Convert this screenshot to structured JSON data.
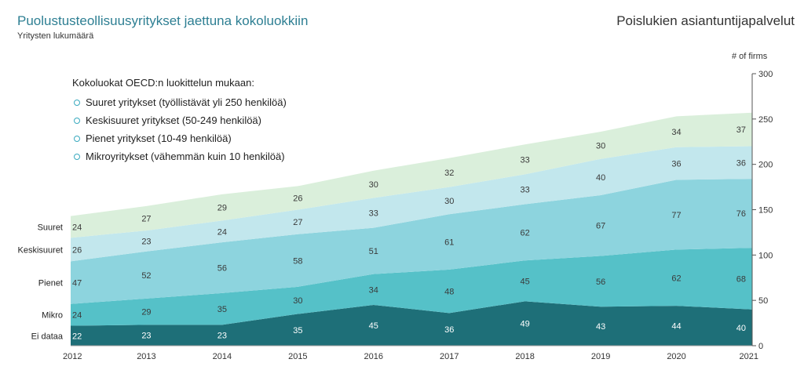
{
  "header": {
    "title": "Puolustusteollisuusyritykset jaettuna kokoluokkiin",
    "subtitle": "Yritysten lukumäärä",
    "right_title": "Poislukien asiantuntijapalvelut",
    "unit_label": "# of firms"
  },
  "legend": {
    "title": "Kokoluokat OECD:n luokittelun mukaan:",
    "items": [
      "Suuret yritykset (työllistävät yli 250 henkilöä)",
      "Keskisuuret yritykset (50-249 henkilöä)",
      "Pienet yritykset (10-49 henkilöä)",
      "Mikroyritykset (vähemmän kuin 10 henkilöä)"
    ]
  },
  "chart_data": {
    "type": "area",
    "stacked": true,
    "title": "Puolustusteollisuusyritykset jaettuna kokoluokkiin",
    "ylabel": "# of firms",
    "x": [
      "2012",
      "2013",
      "2014",
      "2015",
      "2016",
      "2017",
      "2018",
      "2019",
      "2020",
      "2021"
    ],
    "ylim": [
      0,
      300
    ],
    "yticks": [
      0,
      50,
      100,
      150,
      200,
      250,
      300
    ],
    "y_axis_side": "right",
    "series": [
      {
        "name": "Ei dataa",
        "values": [
          22,
          23,
          23,
          35,
          45,
          36,
          49,
          43,
          44,
          40
        ],
        "color": "#1e6f78"
      },
      {
        "name": "Mikro",
        "values": [
          24,
          29,
          35,
          30,
          34,
          48,
          45,
          56,
          62,
          68
        ],
        "color": "#55c1c8"
      },
      {
        "name": "Pienet",
        "values": [
          47,
          52,
          56,
          58,
          51,
          61,
          62,
          67,
          77,
          76
        ],
        "color": "#8dd4de"
      },
      {
        "name": "Keskisuuret",
        "values": [
          26,
          23,
          24,
          27,
          33,
          30,
          33,
          40,
          36,
          36
        ],
        "color": "#c2e7ed"
      },
      {
        "name": "Suuret",
        "values": [
          24,
          27,
          29,
          26,
          30,
          32,
          33,
          30,
          34,
          37
        ],
        "color": "#daefdb"
      }
    ]
  }
}
